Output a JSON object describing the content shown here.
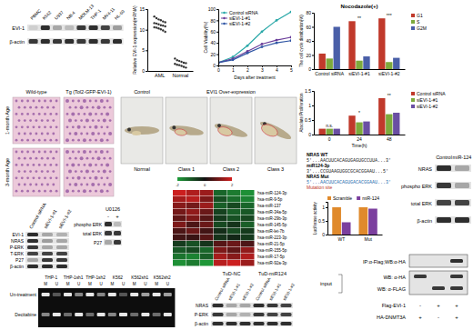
{
  "chart_data": [
    {
      "type": "scatter",
      "y_label": "Relative EVI-1 expression(mRNA)",
      "categories": [
        "AML",
        "Normal"
      ],
      "values": [
        [
          13.2,
          12.8,
          12.5,
          12.3,
          12.0,
          11.8,
          11.6,
          11.5,
          11.3,
          11.1,
          11.0,
          10.8,
          10.6,
          10.5,
          10.3,
          10.1,
          9.8,
          9.5
        ],
        [
          3.0,
          2.6,
          2.4,
          2.2,
          2.0,
          1.9,
          1.7,
          1.5,
          1.4,
          1.2,
          1.0,
          0.8
        ]
      ],
      "ylim": [
        0,
        15
      ],
      "yticks": [
        0,
        5,
        10,
        15
      ],
      "color": "#333333",
      "marker": "circle"
    },
    {
      "type": "line",
      "x_label": "Days after treatment",
      "y_label": "Cell Viability(%)",
      "x": [
        0,
        1,
        2,
        3,
        4,
        5
      ],
      "xlim": [
        0,
        5
      ],
      "xticks": [
        0,
        1,
        2,
        3,
        4,
        5
      ],
      "ylim": [
        0,
        100
      ],
      "yticks": [
        0,
        20,
        40,
        60,
        80,
        100
      ],
      "series": [
        {
          "name": "Control siRNA",
          "color": "#2aa8a8",
          "values": [
            5,
            15,
            35,
            60,
            80,
            95
          ]
        },
        {
          "name": "siEVI-1-#1",
          "color": "#6a3d9a",
          "values": [
            5,
            12,
            25,
            38,
            45,
            50
          ]
        },
        {
          "name": "siEVI-1-#2",
          "color": "#2f55a4",
          "values": [
            5,
            10,
            22,
            33,
            40,
            44
          ]
        }
      ],
      "marker": "circle",
      "legend": "upper left"
    },
    {
      "type": "bar",
      "title": "Nocodazole(+)",
      "y_label": "The cell cycle distribution(%)",
      "categories": [
        "Control siRNA",
        "siEVI-1-#1",
        "siEVI-1-#2"
      ],
      "ylim": [
        0,
        80
      ],
      "yticks": [
        0,
        20,
        40,
        60,
        80
      ],
      "series": [
        {
          "name": "G1",
          "color": "#c0392b",
          "values": [
            22,
            68,
            72
          ]
        },
        {
          "name": "S",
          "color": "#7daa3c",
          "values": [
            15,
            12,
            10
          ]
        },
        {
          "name": "G2M",
          "color": "#4a5fa8",
          "values": [
            60,
            18,
            16
          ]
        }
      ],
      "annotations": [
        {
          "text": "**",
          "x": 1
        },
        {
          "text": "***",
          "x": 2
        }
      ],
      "legend": "right"
    },
    {
      "type": "bar",
      "y_label": "Absolute Proliferation",
      "x_label": "Time(h)",
      "categories": [
        "0",
        "24",
        "48"
      ],
      "ylim": [
        0,
        1.5
      ],
      "yticks": [
        0,
        0.5,
        1,
        1.5
      ],
      "series": [
        {
          "name": "Control siRNA",
          "color": "#c0392b",
          "values": [
            0.2,
            0.65,
            1.25
          ]
        },
        {
          "name": "siEVI-1-#1",
          "color": "#7daa3c",
          "values": [
            0.2,
            0.42,
            0.7
          ]
        },
        {
          "name": "siEVI-1-#2",
          "color": "#6a4fa3",
          "values": [
            0.2,
            0.45,
            0.75
          ]
        }
      ],
      "annotations": [
        {
          "text": "n.s.",
          "x": 0
        },
        {
          "text": "*",
          "x": 1
        },
        {
          "text": "**",
          "x": 2
        }
      ],
      "legend": "right"
    },
    {
      "type": "bar",
      "y_label": "Luciferase activity",
      "categories": [
        "WT",
        "Mut"
      ],
      "ylim": [
        0,
        1.2
      ],
      "yticks": [
        0,
        0.5,
        1
      ],
      "series": [
        {
          "name": "Scramble",
          "color": "#e08a2c",
          "values": [
            1,
            1
          ]
        },
        {
          "name": "miR-124",
          "color": "#7b3f9e",
          "values": [
            0.45,
            0.95
          ]
        }
      ],
      "legend": "top"
    }
  ],
  "blot_cell_lines": {
    "columns": [
      "PBMC",
      "K562",
      "U937",
      "NB-4",
      "MOLM-13",
      "THP-1",
      "MV4-11",
      "HL-60"
    ],
    "rows": [
      "EVI-1",
      "β-actin"
    ],
    "bands": [
      [
        0.1,
        0.9,
        0.3,
        0.2,
        0.85,
        0.9,
        0.8,
        0.35
      ],
      [
        0.85,
        0.9,
        0.85,
        0.9,
        0.85,
        0.9,
        0.85,
        0.9
      ]
    ]
  },
  "blot_sirna": {
    "columns": [
      "Control siRNA",
      "siEVI-1-#1",
      "siEVI-1-#2"
    ],
    "rows": [
      "EVI-1",
      "NRAS",
      "P-ERK",
      "T-ERK",
      "P27",
      "β-actin"
    ],
    "bands": [
      [
        0.9,
        0.3,
        0.25
      ],
      [
        0.9,
        0.35,
        0.3
      ],
      [
        0.85,
        0.3,
        0.3
      ],
      [
        0.8,
        0.8,
        0.8
      ],
      [
        0.3,
        0.85,
        0.85
      ],
      [
        0.9,
        0.9,
        0.9
      ]
    ]
  },
  "blot_u0126": {
    "header": "U0126",
    "columns": [
      "-",
      "+"
    ],
    "rows": [
      "phospho ERK",
      "total ERK",
      "P27"
    ],
    "bands": [
      [
        0.9,
        0.2
      ],
      [
        0.85,
        0.85
      ],
      [
        0.3,
        0.85
      ]
    ]
  },
  "blot_mir124": {
    "columns": [
      "Control",
      "miR-124"
    ],
    "rows": [
      "NRAS",
      "phospho ERK",
      "total ERK",
      "β-actin"
    ],
    "bands": [
      [
        0.9,
        0.3
      ],
      [
        0.85,
        0.3
      ],
      [
        0.8,
        0.8
      ],
      [
        0.9,
        0.9
      ]
    ]
  },
  "blot_tud": {
    "groups": [
      "TuD-NC",
      "TuD-miR124"
    ],
    "columns": [
      "Control siRNA",
      "siEVI-1-#1",
      "siEVI-1-#2",
      "Control siRNA",
      "siEVI-1-#1",
      "siEVI-1-#2"
    ],
    "rows": [
      "NRAS",
      "P-ERK",
      "β-actin"
    ],
    "bands": [
      [
        0.9,
        0.3,
        0.3,
        0.9,
        0.85,
        0.8
      ],
      [
        0.85,
        0.3,
        0.25,
        0.85,
        0.8,
        0.8
      ],
      [
        0.9,
        0.9,
        0.9,
        0.9,
        0.9,
        0.9
      ]
    ]
  },
  "cells": {
    "columns": [
      "Wild-type",
      "Tg (Tol2-GFP-EVI-1)"
    ],
    "rows": [
      "1-month Age",
      "3-month Age"
    ]
  },
  "zebrafish": {
    "headers": [
      "Control",
      "EVI1 Over-expression"
    ],
    "labels": [
      "Normal",
      "Class 1",
      "Class 2",
      "Class 3"
    ]
  },
  "heatmap": {
    "rows": [
      "hsa-miR-124-3p",
      "hsa-miR-9-5p",
      "hsa-miR-137",
      "hsa-miR-34a-5p",
      "hsa-miR-29b-3p",
      "hsa-miR-145-5p",
      "hsa-miR-let-7b",
      "hsa-miR-223-3p",
      "hsa-miR-21-5p",
      "hsa-miR-155-5p",
      "hsa-miR-17-5p",
      "hsa-miR-92a-3p"
    ],
    "values": [
      [
        1.9,
        1.6,
        1.4,
        -1.2,
        -1.5,
        -1.8
      ],
      [
        1.5,
        1.7,
        1.1,
        -0.9,
        -1.3,
        -1.6
      ],
      [
        1.2,
        1.0,
        1.4,
        -1.1,
        -0.8,
        -1.2
      ],
      [
        1.0,
        1.3,
        0.9,
        -0.7,
        -1.1,
        -1.0
      ],
      [
        0.8,
        1.1,
        0.7,
        -0.6,
        -0.9,
        -0.8
      ],
      [
        1.1,
        0.6,
        0.9,
        -0.8,
        -0.5,
        -1.1
      ],
      [
        0.6,
        0.9,
        0.5,
        -0.4,
        -0.8,
        -0.6
      ],
      [
        0.5,
        0.4,
        0.7,
        -0.5,
        -0.3,
        -0.6
      ],
      [
        -0.6,
        -0.9,
        -0.5,
        0.7,
        0.9,
        0.6
      ],
      [
        -1.0,
        -0.8,
        -1.2,
        1.1,
        0.8,
        1.3
      ],
      [
        -1.4,
        -1.6,
        -1.1,
        1.5,
        1.2,
        1.6
      ],
      [
        -1.8,
        -1.5,
        -1.9,
        1.7,
        1.9,
        1.4
      ]
    ],
    "color_range": [
      -2,
      2
    ],
    "color_ticks": [
      -2,
      0,
      2
    ]
  },
  "sequence": {
    "lines": [
      {
        "label": "NRAS WT",
        "seq": "5'...AACUUCACAGUGAGUGCCUUA...3'"
      },
      {
        "label": "miR124-3p",
        "seq": "3'...CCGUAAGUGGCGCACGGAAU...5'"
      },
      {
        "label": "NRAS Mut",
        "seq": "5'...AACUUCACAGUGACACGGAAU...3'"
      }
    ],
    "note": "Mutation site"
  },
  "gel": {
    "columns": [
      "THP-1",
      "THP-1sh1",
      "THP-1sh2",
      "K562",
      "K562sh1",
      "K562sh2"
    ],
    "lane_labels": [
      "M",
      "U"
    ],
    "rows": [
      "Un-treatment",
      "Decitabine"
    ],
    "bands": [
      [
        0.9,
        0.3,
        0.9,
        0.5,
        0.9,
        0.5,
        0.9,
        0.3,
        0.9,
        0.6,
        0.9,
        0.6
      ],
      [
        0.5,
        0.9,
        0.4,
        0.9,
        0.4,
        0.9,
        0.5,
        0.9,
        0.4,
        0.9,
        0.4,
        0.9
      ]
    ]
  },
  "ip": {
    "ip_label": "IP:α-Flag;WB:α-HA",
    "input_label": "input",
    "rows": [
      "WB: α-HA",
      "WB: α-FLAG"
    ],
    "ip_bands": [
      0,
      0,
      0.9
    ],
    "input_bands": [
      [
        0.85,
        0,
        0.85
      ],
      [
        0,
        0.85,
        0.85
      ]
    ],
    "conditions": [
      {
        "label": "Flag-EVI-1",
        "signs": [
          "-",
          "+",
          "+"
        ]
      },
      {
        "label": "HA-DNMT3A",
        "signs": [
          "+",
          "-",
          "+"
        ]
      }
    ]
  }
}
